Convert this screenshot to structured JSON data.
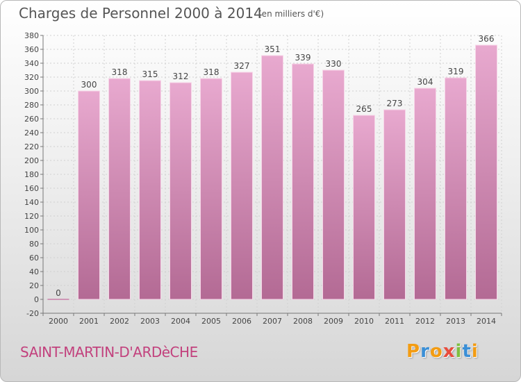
{
  "header": {
    "title": "Charges de Personnel 2000 à 2014",
    "subtitle": "(en milliers d'€)"
  },
  "footer": {
    "commune": "SAINT-MARTIN-D'ARDèCHE",
    "logo_letters": [
      "P",
      "r",
      "o",
      "x",
      "i",
      "t",
      "i"
    ],
    "logo_colors": [
      "#f39c12",
      "#3a8fd6",
      "#f39c12",
      "#e84c3d",
      "#7fbf3f",
      "#3a8fd6",
      "#f39c12"
    ]
  },
  "chart_data": {
    "type": "bar",
    "title": "Charges de Personnel 2000 à 2014",
    "subtitle": "(en milliers d'€)",
    "categories": [
      "2000",
      "2001",
      "2002",
      "2003",
      "2004",
      "2005",
      "2006",
      "2007",
      "2008",
      "2009",
      "2010",
      "2011",
      "2012",
      "2013",
      "2014"
    ],
    "values": [
      0,
      300,
      318,
      315,
      312,
      318,
      327,
      351,
      339,
      330,
      265,
      273,
      304,
      319,
      366
    ],
    "ylim": [
      -20,
      380
    ],
    "ytick_step": 20,
    "grid": true,
    "legend": "none",
    "bar_color": "#c97fa8",
    "xlabel": "",
    "ylabel": ""
  }
}
